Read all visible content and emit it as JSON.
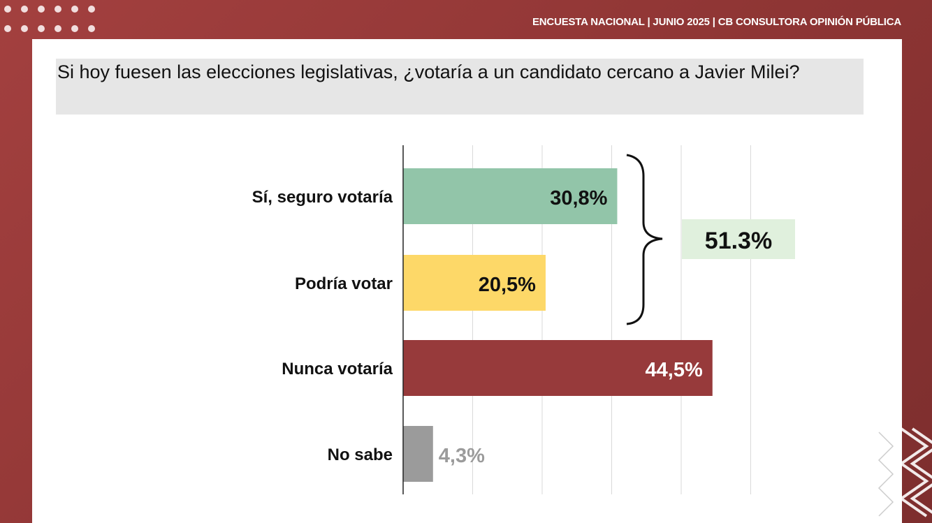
{
  "header": {
    "source_text": "ENCUESTA NACIONAL | JUNIO 2025 | CB CONSULTORA OPINIÓN PÚBLICA"
  },
  "question": "Si hoy fuesen las elecciones legislativas, ¿votaría a un candidato cercano a Javier Milei?",
  "colors": {
    "background": "#963a39",
    "seguro": "#92c5a9",
    "podria": "#fdd868",
    "nunca": "#973a3b",
    "no_sabe": "#9b9b9b",
    "total_badge": "#e0f0dd"
  },
  "chart_data": {
    "type": "bar",
    "orientation": "horizontal",
    "categories": [
      "Sí, seguro votaría",
      "Podría votar",
      "Nunca votaría",
      "No sabe"
    ],
    "values": [
      30.8,
      20.5,
      44.5,
      4.3
    ],
    "value_labels": [
      "30,8%",
      "20,5%",
      "44,5%",
      "4,3%"
    ],
    "bar_colors": [
      "#92c5a9",
      "#fdd868",
      "#973a3b",
      "#9b9b9b"
    ],
    "xlim": [
      0,
      50
    ],
    "grid": true,
    "grouped_total": {
      "label": "51.3%",
      "categories": [
        "Sí, seguro votaría",
        "Podría votar"
      ]
    }
  }
}
